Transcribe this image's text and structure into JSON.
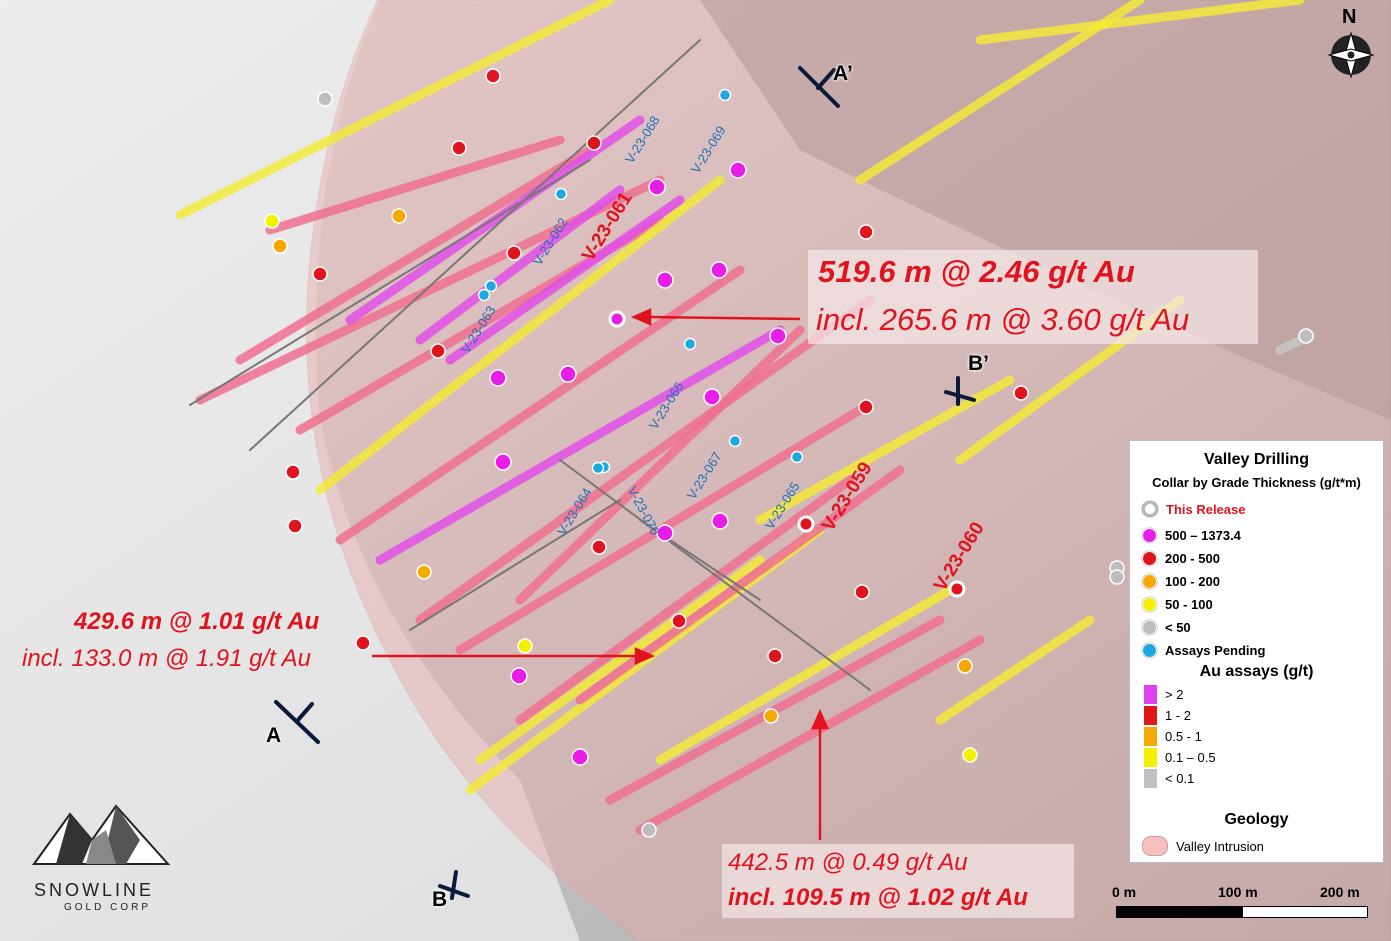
{
  "north_label": "N",
  "section_labels": {
    "a": "A",
    "a_prime": "A’",
    "b": "B",
    "b_prime": "B’"
  },
  "highlights": {
    "h1": {
      "main": "519.6 m @ 2.46 g/t Au",
      "incl": "incl. 265.6 m @ 3.60 g/t Au"
    },
    "h2": {
      "main": "429.6 m @ 1.01 g/t Au",
      "incl": "incl. 133.0 m @ 1.91 g/t Au"
    },
    "h3": {
      "main": "442.5 m @ 0.49 g/t Au",
      "incl": "incl. 109.5 m @ 1.02 g/t Au"
    }
  },
  "hole_labels_release": [
    "V-23-061",
    "V-23-059",
    "V-23-060"
  ],
  "hole_labels_pending": [
    "V-23-068",
    "V-23-069",
    "V-23-062",
    "V-23-063",
    "V-23-066",
    "V-23-067",
    "V-23-064",
    "V-23-070",
    "V-23-065"
  ],
  "legend": {
    "title": "Valley Drilling",
    "subtitle": "Collar by Grade Thickness (g/t*m)",
    "this_release": "This Release",
    "collars": [
      {
        "label": "500 – 1373.4",
        "color": "#e81ee8"
      },
      {
        "label": "200 - 500",
        "color": "#e0141e"
      },
      {
        "label": "100 - 200",
        "color": "#f5a800"
      },
      {
        "label": "50 - 100",
        "color": "#f5f000"
      },
      {
        "label": "< 50",
        "color": "#bdbdbd"
      },
      {
        "label": "Assays Pending",
        "color": "#1ea8e0"
      }
    ],
    "assay_title": "Au assays (g/t)",
    "assays": [
      {
        "label": "> 2",
        "color": "#e040f0"
      },
      {
        "label": "1 - 2",
        "color": "#e01818"
      },
      {
        "label": "0.5 - 1",
        "color": "#f5a800"
      },
      {
        "label": "0.1 – 0.5",
        "color": "#f5f000"
      },
      {
        "label": "< 0.1",
        "color": "#c0c0c0"
      }
    ],
    "geology_title": "Geology",
    "geology_item": "Valley Intrusion"
  },
  "scale": {
    "l0": "0 m",
    "l1": "100 m",
    "l2": "200 m"
  },
  "logo": {
    "name": "SNOWLINE",
    "sub": "GOLD CORP"
  }
}
